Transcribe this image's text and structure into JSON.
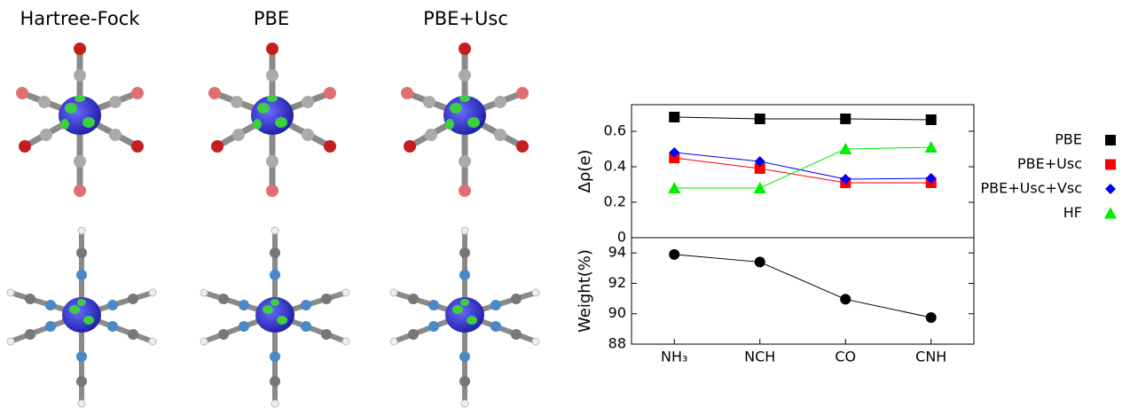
{
  "panel_titles": [
    "Hartree-Fock",
    "PBE",
    "PBE+Usc"
  ],
  "chart_data": [
    {
      "type": "line",
      "ylabel": "Δρ(e)",
      "ylim": [
        0,
        0.75
      ],
      "yticks": [
        0,
        0.2,
        0.4,
        0.6
      ],
      "legend": "outside-right",
      "series": [
        {
          "name": "PBE",
          "color": "#000000",
          "marker": "square",
          "values": [
            0.68,
            0.67,
            0.67,
            0.665
          ]
        },
        {
          "name": "PBE+Usc",
          "color": "#ff0000",
          "marker": "square",
          "values": [
            0.45,
            0.39,
            0.31,
            0.31
          ]
        },
        {
          "name": "PBE+Usc+Vsc",
          "color": "#0000ff",
          "marker": "diamond",
          "values": [
            0.48,
            0.43,
            0.33,
            0.335
          ]
        },
        {
          "name": "HF",
          "color": "#00ee00",
          "marker": "triangle",
          "values": [
            0.28,
            0.28,
            0.5,
            0.51
          ]
        }
      ]
    },
    {
      "type": "line",
      "ylabel": "Weight(%)",
      "ylim": [
        88,
        95
      ],
      "yticks": [
        88,
        90,
        92,
        94
      ],
      "categories": [
        "NH₃",
        "NCH",
        "CO",
        "CNH"
      ],
      "color": "#000000",
      "marker": "circle",
      "values": [
        93.9,
        93.4,
        90.95,
        89.75
      ]
    }
  ]
}
